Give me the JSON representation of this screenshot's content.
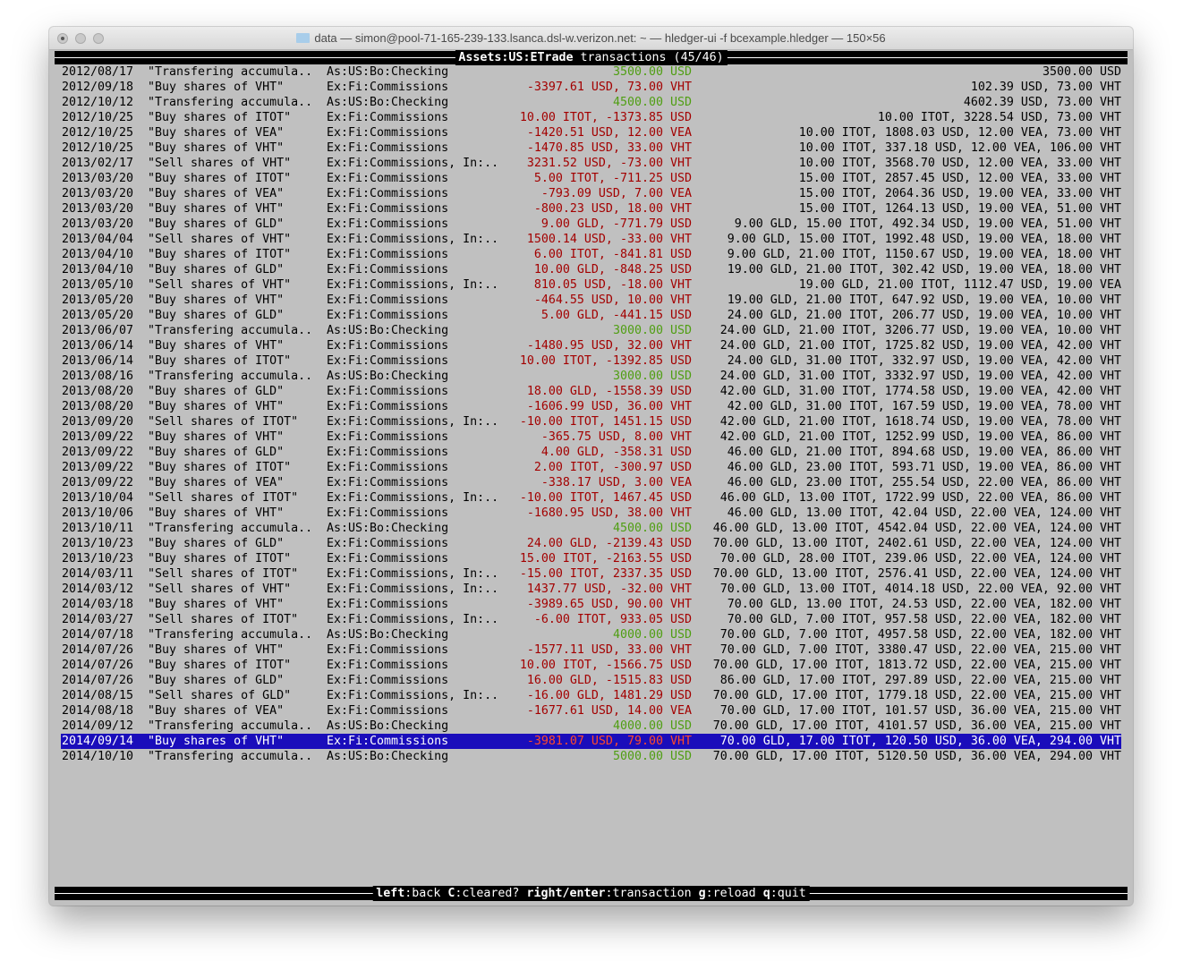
{
  "window": {
    "title": "data — simon@pool-71-165-239-133.lsanca.dsl-w.verizon.net: ~ — hledger-ui -f bcexample.hledger — 150×56"
  },
  "header": {
    "account": "Assets:US:ETrade",
    "suffix": " transactions (45/46)"
  },
  "colors": {
    "positive": "#4f9e12",
    "negative": "#a30000",
    "selected_bg": "#1a0dbb"
  },
  "selected_index": 44,
  "rows": [
    {
      "date": "2012/08/17",
      "desc": "\"Transfering accumula..",
      "account": "As:US:Bo:Checking",
      "amount": "3500.00 USD",
      "color": "green",
      "balance": "3500.00 USD"
    },
    {
      "date": "2012/09/18",
      "desc": "\"Buy shares of VHT\"",
      "account": "Ex:Fi:Commissions",
      "amount": "-3397.61 USD, 73.00 VHT",
      "color": "red",
      "balance": "102.39 USD, 73.00 VHT"
    },
    {
      "date": "2012/10/12",
      "desc": "\"Transfering accumula..",
      "account": "As:US:Bo:Checking",
      "amount": "4500.00 USD",
      "color": "green",
      "balance": "4602.39 USD, 73.00 VHT"
    },
    {
      "date": "2012/10/25",
      "desc": "\"Buy shares of ITOT\"",
      "account": "Ex:Fi:Commissions",
      "amount": "10.00 ITOT, -1373.85 USD",
      "color": "red",
      "balance": "10.00 ITOT, 3228.54 USD, 73.00 VHT"
    },
    {
      "date": "2012/10/25",
      "desc": "\"Buy shares of VEA\"",
      "account": "Ex:Fi:Commissions",
      "amount": "-1420.51 USD, 12.00 VEA",
      "color": "red",
      "balance": "10.00 ITOT, 1808.03 USD, 12.00 VEA, 73.00 VHT"
    },
    {
      "date": "2012/10/25",
      "desc": "\"Buy shares of VHT\"",
      "account": "Ex:Fi:Commissions",
      "amount": "-1470.85 USD, 33.00 VHT",
      "color": "red",
      "balance": "10.00 ITOT, 337.18 USD, 12.00 VEA, 106.00 VHT"
    },
    {
      "date": "2013/02/17",
      "desc": "\"Sell shares of VHT\"",
      "account": "Ex:Fi:Commissions, In:..",
      "amount": "3231.52 USD, -73.00 VHT",
      "color": "red",
      "balance": "10.00 ITOT, 3568.70 USD, 12.00 VEA, 33.00 VHT"
    },
    {
      "date": "2013/03/20",
      "desc": "\"Buy shares of ITOT\"",
      "account": "Ex:Fi:Commissions",
      "amount": "5.00 ITOT, -711.25 USD",
      "color": "red",
      "balance": "15.00 ITOT, 2857.45 USD, 12.00 VEA, 33.00 VHT"
    },
    {
      "date": "2013/03/20",
      "desc": "\"Buy shares of VEA\"",
      "account": "Ex:Fi:Commissions",
      "amount": "-793.09 USD, 7.00 VEA",
      "color": "red",
      "balance": "15.00 ITOT, 2064.36 USD, 19.00 VEA, 33.00 VHT"
    },
    {
      "date": "2013/03/20",
      "desc": "\"Buy shares of VHT\"",
      "account": "Ex:Fi:Commissions",
      "amount": "-800.23 USD, 18.00 VHT",
      "color": "red",
      "balance": "15.00 ITOT, 1264.13 USD, 19.00 VEA, 51.00 VHT"
    },
    {
      "date": "2013/03/20",
      "desc": "\"Buy shares of GLD\"",
      "account": "Ex:Fi:Commissions",
      "amount": "9.00 GLD, -771.79 USD",
      "color": "red",
      "balance": "9.00 GLD, 15.00 ITOT, 492.34 USD, 19.00 VEA, 51.00 VHT"
    },
    {
      "date": "2013/04/04",
      "desc": "\"Sell shares of VHT\"",
      "account": "Ex:Fi:Commissions, In:..",
      "amount": "1500.14 USD, -33.00 VHT",
      "color": "red",
      "balance": "9.00 GLD, 15.00 ITOT, 1992.48 USD, 19.00 VEA, 18.00 VHT"
    },
    {
      "date": "2013/04/10",
      "desc": "\"Buy shares of ITOT\"",
      "account": "Ex:Fi:Commissions",
      "amount": "6.00 ITOT, -841.81 USD",
      "color": "red",
      "balance": "9.00 GLD, 21.00 ITOT, 1150.67 USD, 19.00 VEA, 18.00 VHT"
    },
    {
      "date": "2013/04/10",
      "desc": "\"Buy shares of GLD\"",
      "account": "Ex:Fi:Commissions",
      "amount": "10.00 GLD, -848.25 USD",
      "color": "red",
      "balance": "19.00 GLD, 21.00 ITOT, 302.42 USD, 19.00 VEA, 18.00 VHT"
    },
    {
      "date": "2013/05/10",
      "desc": "\"Sell shares of VHT\"",
      "account": "Ex:Fi:Commissions, In:..",
      "amount": "810.05 USD, -18.00 VHT",
      "color": "red",
      "balance": "19.00 GLD, 21.00 ITOT, 1112.47 USD, 19.00 VEA"
    },
    {
      "date": "2013/05/20",
      "desc": "\"Buy shares of VHT\"",
      "account": "Ex:Fi:Commissions",
      "amount": "-464.55 USD, 10.00 VHT",
      "color": "red",
      "balance": "19.00 GLD, 21.00 ITOT, 647.92 USD, 19.00 VEA, 10.00 VHT"
    },
    {
      "date": "2013/05/20",
      "desc": "\"Buy shares of GLD\"",
      "account": "Ex:Fi:Commissions",
      "amount": "5.00 GLD, -441.15 USD",
      "color": "red",
      "balance": "24.00 GLD, 21.00 ITOT, 206.77 USD, 19.00 VEA, 10.00 VHT"
    },
    {
      "date": "2013/06/07",
      "desc": "\"Transfering accumula..",
      "account": "As:US:Bo:Checking",
      "amount": "3000.00 USD",
      "color": "green",
      "balance": "24.00 GLD, 21.00 ITOT, 3206.77 USD, 19.00 VEA, 10.00 VHT"
    },
    {
      "date": "2013/06/14",
      "desc": "\"Buy shares of VHT\"",
      "account": "Ex:Fi:Commissions",
      "amount": "-1480.95 USD, 32.00 VHT",
      "color": "red",
      "balance": "24.00 GLD, 21.00 ITOT, 1725.82 USD, 19.00 VEA, 42.00 VHT"
    },
    {
      "date": "2013/06/14",
      "desc": "\"Buy shares of ITOT\"",
      "account": "Ex:Fi:Commissions",
      "amount": "10.00 ITOT, -1392.85 USD",
      "color": "red",
      "balance": "24.00 GLD, 31.00 ITOT, 332.97 USD, 19.00 VEA, 42.00 VHT"
    },
    {
      "date": "2013/08/16",
      "desc": "\"Transfering accumula..",
      "account": "As:US:Bo:Checking",
      "amount": "3000.00 USD",
      "color": "green",
      "balance": "24.00 GLD, 31.00 ITOT, 3332.97 USD, 19.00 VEA, 42.00 VHT"
    },
    {
      "date": "2013/08/20",
      "desc": "\"Buy shares of GLD\"",
      "account": "Ex:Fi:Commissions",
      "amount": "18.00 GLD, -1558.39 USD",
      "color": "red",
      "balance": "42.00 GLD, 31.00 ITOT, 1774.58 USD, 19.00 VEA, 42.00 VHT"
    },
    {
      "date": "2013/08/20",
      "desc": "\"Buy shares of VHT\"",
      "account": "Ex:Fi:Commissions",
      "amount": "-1606.99 USD, 36.00 VHT",
      "color": "red",
      "balance": "42.00 GLD, 31.00 ITOT, 167.59 USD, 19.00 VEA, 78.00 VHT"
    },
    {
      "date": "2013/09/20",
      "desc": "\"Sell shares of ITOT\"",
      "account": "Ex:Fi:Commissions, In:..",
      "amount": "-10.00 ITOT, 1451.15 USD",
      "color": "red",
      "balance": "42.00 GLD, 21.00 ITOT, 1618.74 USD, 19.00 VEA, 78.00 VHT"
    },
    {
      "date": "2013/09/22",
      "desc": "\"Buy shares of VHT\"",
      "account": "Ex:Fi:Commissions",
      "amount": "-365.75 USD, 8.00 VHT",
      "color": "red",
      "balance": "42.00 GLD, 21.00 ITOT, 1252.99 USD, 19.00 VEA, 86.00 VHT"
    },
    {
      "date": "2013/09/22",
      "desc": "\"Buy shares of GLD\"",
      "account": "Ex:Fi:Commissions",
      "amount": "4.00 GLD, -358.31 USD",
      "color": "red",
      "balance": "46.00 GLD, 21.00 ITOT, 894.68 USD, 19.00 VEA, 86.00 VHT"
    },
    {
      "date": "2013/09/22",
      "desc": "\"Buy shares of ITOT\"",
      "account": "Ex:Fi:Commissions",
      "amount": "2.00 ITOT, -300.97 USD",
      "color": "red",
      "balance": "46.00 GLD, 23.00 ITOT, 593.71 USD, 19.00 VEA, 86.00 VHT"
    },
    {
      "date": "2013/09/22",
      "desc": "\"Buy shares of VEA\"",
      "account": "Ex:Fi:Commissions",
      "amount": "-338.17 USD, 3.00 VEA",
      "color": "red",
      "balance": "46.00 GLD, 23.00 ITOT, 255.54 USD, 22.00 VEA, 86.00 VHT"
    },
    {
      "date": "2013/10/04",
      "desc": "\"Sell shares of ITOT\"",
      "account": "Ex:Fi:Commissions, In:..",
      "amount": "-10.00 ITOT, 1467.45 USD",
      "color": "red",
      "balance": "46.00 GLD, 13.00 ITOT, 1722.99 USD, 22.00 VEA, 86.00 VHT"
    },
    {
      "date": "2013/10/06",
      "desc": "\"Buy shares of VHT\"",
      "account": "Ex:Fi:Commissions",
      "amount": "-1680.95 USD, 38.00 VHT",
      "color": "red",
      "balance": "46.00 GLD, 13.00 ITOT, 42.04 USD, 22.00 VEA, 124.00 VHT"
    },
    {
      "date": "2013/10/11",
      "desc": "\"Transfering accumula..",
      "account": "As:US:Bo:Checking",
      "amount": "4500.00 USD",
      "color": "green",
      "balance": "46.00 GLD, 13.00 ITOT, 4542.04 USD, 22.00 VEA, 124.00 VHT"
    },
    {
      "date": "2013/10/23",
      "desc": "\"Buy shares of GLD\"",
      "account": "Ex:Fi:Commissions",
      "amount": "24.00 GLD, -2139.43 USD",
      "color": "red",
      "balance": "70.00 GLD, 13.00 ITOT, 2402.61 USD, 22.00 VEA, 124.00 VHT"
    },
    {
      "date": "2013/10/23",
      "desc": "\"Buy shares of ITOT\"",
      "account": "Ex:Fi:Commissions",
      "amount": "15.00 ITOT, -2163.55 USD",
      "color": "red",
      "balance": "70.00 GLD, 28.00 ITOT, 239.06 USD, 22.00 VEA, 124.00 VHT"
    },
    {
      "date": "2014/03/11",
      "desc": "\"Sell shares of ITOT\"",
      "account": "Ex:Fi:Commissions, In:..",
      "amount": "-15.00 ITOT, 2337.35 USD",
      "color": "red",
      "balance": "70.00 GLD, 13.00 ITOT, 2576.41 USD, 22.00 VEA, 124.00 VHT"
    },
    {
      "date": "2014/03/12",
      "desc": "\"Sell shares of VHT\"",
      "account": "Ex:Fi:Commissions, In:..",
      "amount": "1437.77 USD, -32.00 VHT",
      "color": "red",
      "balance": "70.00 GLD, 13.00 ITOT, 4014.18 USD, 22.00 VEA, 92.00 VHT"
    },
    {
      "date": "2014/03/18",
      "desc": "\"Buy shares of VHT\"",
      "account": "Ex:Fi:Commissions",
      "amount": "-3989.65 USD, 90.00 VHT",
      "color": "red",
      "balance": "70.00 GLD, 13.00 ITOT, 24.53 USD, 22.00 VEA, 182.00 VHT"
    },
    {
      "date": "2014/03/27",
      "desc": "\"Sell shares of ITOT\"",
      "account": "Ex:Fi:Commissions, In:..",
      "amount": "-6.00 ITOT, 933.05 USD",
      "color": "red",
      "balance": "70.00 GLD, 7.00 ITOT, 957.58 USD, 22.00 VEA, 182.00 VHT"
    },
    {
      "date": "2014/07/18",
      "desc": "\"Transfering accumula..",
      "account": "As:US:Bo:Checking",
      "amount": "4000.00 USD",
      "color": "green",
      "balance": "70.00 GLD, 7.00 ITOT, 4957.58 USD, 22.00 VEA, 182.00 VHT"
    },
    {
      "date": "2014/07/26",
      "desc": "\"Buy shares of VHT\"",
      "account": "Ex:Fi:Commissions",
      "amount": "-1577.11 USD, 33.00 VHT",
      "color": "red",
      "balance": "70.00 GLD, 7.00 ITOT, 3380.47 USD, 22.00 VEA, 215.00 VHT"
    },
    {
      "date": "2014/07/26",
      "desc": "\"Buy shares of ITOT\"",
      "account": "Ex:Fi:Commissions",
      "amount": "10.00 ITOT, -1566.75 USD",
      "color": "red",
      "balance": "70.00 GLD, 17.00 ITOT, 1813.72 USD, 22.00 VEA, 215.00 VHT"
    },
    {
      "date": "2014/07/26",
      "desc": "\"Buy shares of GLD\"",
      "account": "Ex:Fi:Commissions",
      "amount": "16.00 GLD, -1515.83 USD",
      "color": "red",
      "balance": "86.00 GLD, 17.00 ITOT, 297.89 USD, 22.00 VEA, 215.00 VHT"
    },
    {
      "date": "2014/08/15",
      "desc": "\"Sell shares of GLD\"",
      "account": "Ex:Fi:Commissions, In:..",
      "amount": "-16.00 GLD, 1481.29 USD",
      "color": "red",
      "balance": "70.00 GLD, 17.00 ITOT, 1779.18 USD, 22.00 VEA, 215.00 VHT"
    },
    {
      "date": "2014/08/18",
      "desc": "\"Buy shares of VEA\"",
      "account": "Ex:Fi:Commissions",
      "amount": "-1677.61 USD, 14.00 VEA",
      "color": "red",
      "balance": "70.00 GLD, 17.00 ITOT, 101.57 USD, 36.00 VEA, 215.00 VHT"
    },
    {
      "date": "2014/09/12",
      "desc": "\"Transfering accumula..",
      "account": "As:US:Bo:Checking",
      "amount": "4000.00 USD",
      "color": "green",
      "balance": "70.00 GLD, 17.00 ITOT, 4101.57 USD, 36.00 VEA, 215.00 VHT"
    },
    {
      "date": "2014/09/14",
      "desc": "\"Buy shares of VHT\"",
      "account": "Ex:Fi:Commissions",
      "amount": "-3981.07 USD, 79.00 VHT",
      "color": "red",
      "balance": "70.00 GLD, 17.00 ITOT, 120.50 USD, 36.00 VEA, 294.00 VHT"
    },
    {
      "date": "2014/10/10",
      "desc": "\"Transfering accumula..",
      "account": "As:US:Bo:Checking",
      "amount": "5000.00 USD",
      "color": "green",
      "balance": "70.00 GLD, 17.00 ITOT, 5120.50 USD, 36.00 VEA, 294.00 VHT"
    }
  ],
  "footer": {
    "keys": [
      {
        "key": "left",
        "action": "back"
      },
      {
        "key": "C",
        "action": "cleared?"
      },
      {
        "key": "right/enter",
        "action": "transaction"
      },
      {
        "key": "g",
        "action": "reload"
      },
      {
        "key": "q",
        "action": "quit"
      }
    ]
  }
}
